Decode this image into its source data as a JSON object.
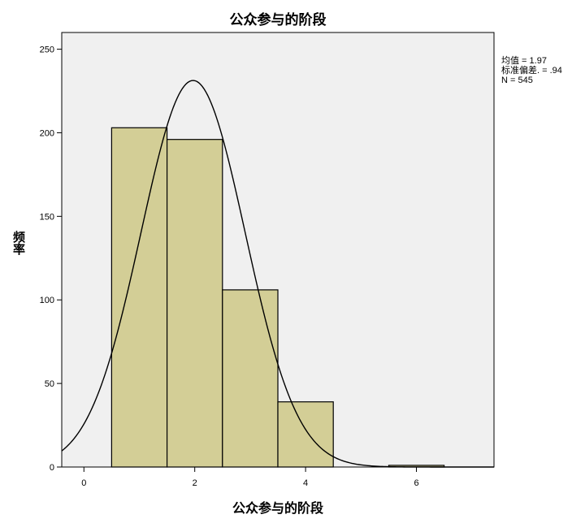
{
  "chart_data": {
    "type": "bar",
    "title": "公众参与的阶段",
    "xlabel": "公众参与的阶段",
    "ylabel": "频率",
    "bins": [
      {
        "x0": 0.5,
        "x1": 1.5,
        "value": 203
      },
      {
        "x0": 1.5,
        "x1": 2.5,
        "value": 196
      },
      {
        "x0": 2.5,
        "x1": 3.5,
        "value": 106
      },
      {
        "x0": 3.5,
        "x1": 4.5,
        "value": 39
      },
      {
        "x0": 5.5,
        "x1": 6.5,
        "value": 1
      }
    ],
    "xlim": [
      -0.4,
      7.4
    ],
    "ylim": [
      0,
      260
    ],
    "xticks": [
      0,
      2,
      4,
      6
    ],
    "yticks": [
      0,
      50,
      100,
      150,
      200,
      250
    ],
    "normal_curve": {
      "mean": 1.97,
      "sd": 0.94,
      "n": 545,
      "bin_width": 1
    },
    "stats_text": [
      "均值 = 1.97",
      "标准偏差. = .94",
      "N = 545"
    ],
    "colors": {
      "bar_fill": "#d3ce96",
      "bar_stroke": "#000000",
      "plot_bg": "#f0f0f0",
      "curve": "#000000"
    }
  }
}
